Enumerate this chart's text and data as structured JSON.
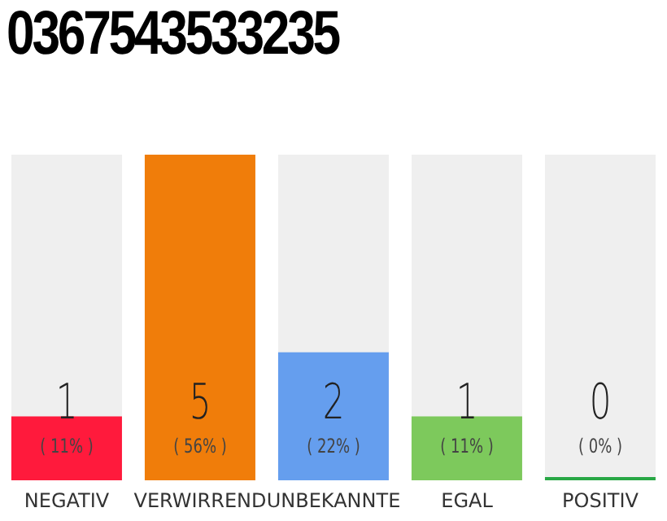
{
  "chart_data": {
    "type": "bar",
    "title": "0367543533235",
    "categories": [
      "NEGATIV",
      "VERWIRREND",
      "UNBEKANNTE",
      "EGAL",
      "POSITIV"
    ],
    "values": [
      11,
      56,
      22,
      11,
      0
    ],
    "value_labels": [
      "( 11% )",
      "( 56% )",
      "( 22% )",
      "( 11% )",
      "( 0% )"
    ],
    "colors": [
      "#ff1a3c",
      "#f07d0a",
      "#659eee",
      "#7dc95c",
      "#28a745"
    ],
    "tick_labels": "x",
    "annotations": [
      "1",
      "5",
      "2",
      "1",
      "0"
    ]
  }
}
